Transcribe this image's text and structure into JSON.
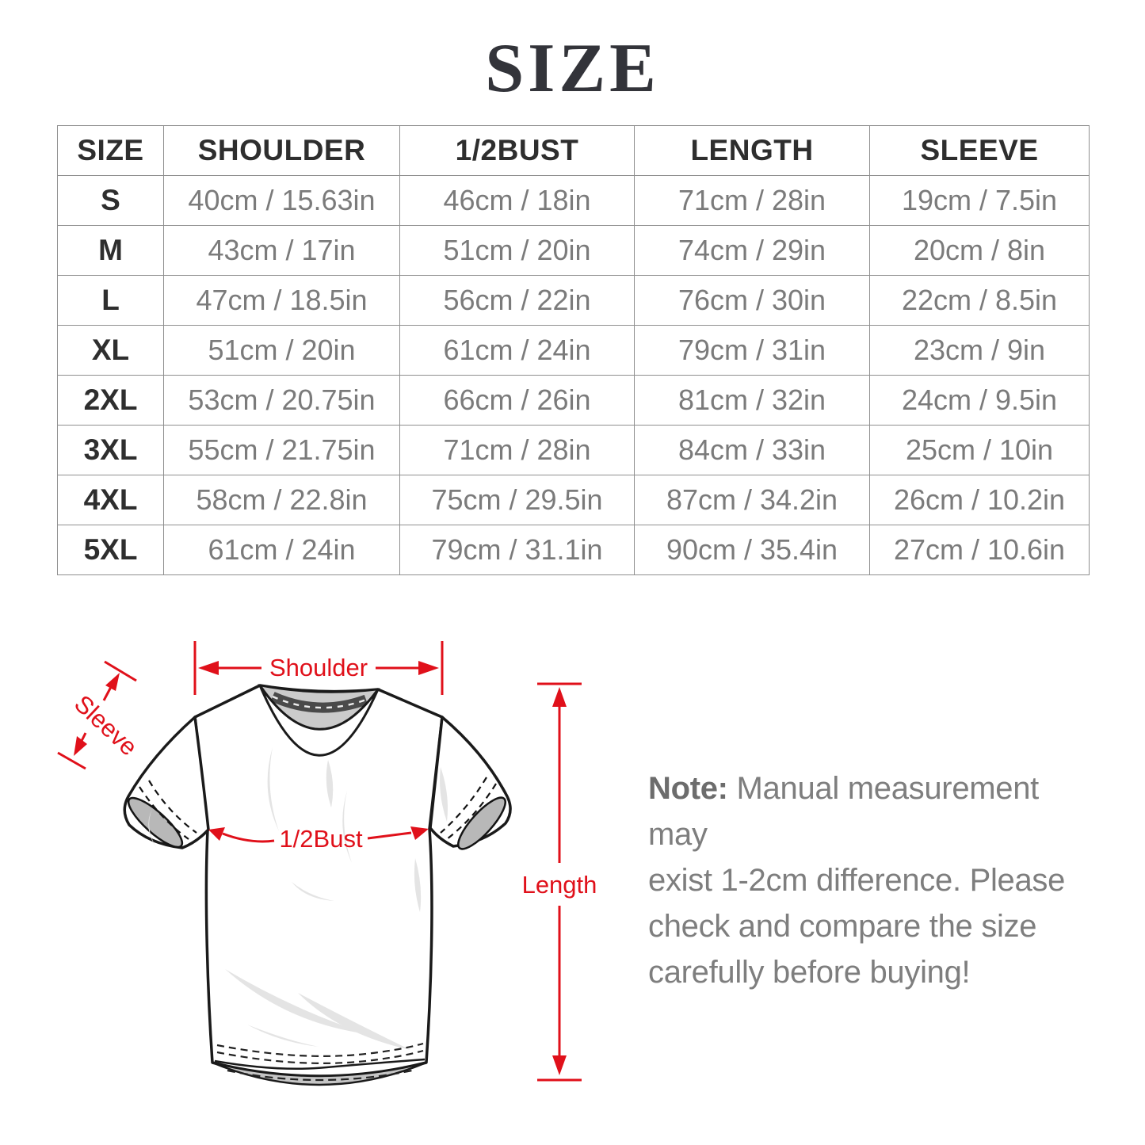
{
  "page": {
    "title": "SIZE"
  },
  "size_table": {
    "headers": [
      "SIZE",
      "SHOULDER",
      "1/2BUST",
      "LENGTH",
      "SLEEVE"
    ],
    "rows": [
      [
        "S",
        "40cm / 15.63in",
        "46cm / 18in",
        "71cm / 28in",
        "19cm / 7.5in"
      ],
      [
        "M",
        "43cm / 17in",
        "51cm / 20in",
        "74cm / 29in",
        "20cm / 8in"
      ],
      [
        "L",
        "47cm / 18.5in",
        "56cm / 22in",
        "76cm / 30in",
        "22cm / 8.5in"
      ],
      [
        "XL",
        "51cm / 20in",
        "61cm / 24in",
        "79cm / 31in",
        "23cm / 9in"
      ],
      [
        "2XL",
        "53cm / 20.75in",
        "66cm / 26in",
        "81cm / 32in",
        "24cm / 9.5in"
      ],
      [
        "3XL",
        "55cm / 21.75in",
        "71cm / 28in",
        "84cm / 33in",
        "25cm / 10in"
      ],
      [
        "4XL",
        "58cm / 22.8in",
        "75cm / 29.5in",
        "87cm / 34.2in",
        "26cm / 10.2in"
      ],
      [
        "5XL",
        "61cm / 24in",
        "79cm / 31.1in",
        "90cm / 35.4in",
        "27cm / 10.6in"
      ]
    ]
  },
  "diagram": {
    "labels": {
      "shoulder": "Shoulder",
      "sleeve": "Sleeve",
      "half_bust": "1/2Bust",
      "length": "Length"
    },
    "annotation_color": "#e0101a"
  },
  "note": {
    "label": "Note:",
    "lines": [
      "Manual measurement may",
      "exist 1-2cm difference. Please",
      "check and compare the size",
      "carefully before buying!"
    ]
  },
  "colors": {
    "accent_red": "#e0101a",
    "table_border": "#8f8f8f",
    "header_text": "#2e2e2e",
    "value_text": "#7b7b7b",
    "note_text": "#7e7e7e",
    "title_text": "#33343a",
    "shirt_outline": "#1a1a1a",
    "shirt_shading": "#e4e4e4",
    "collar_gray": "#cbcbcb",
    "cuff_gray": "#b8b8b8"
  }
}
